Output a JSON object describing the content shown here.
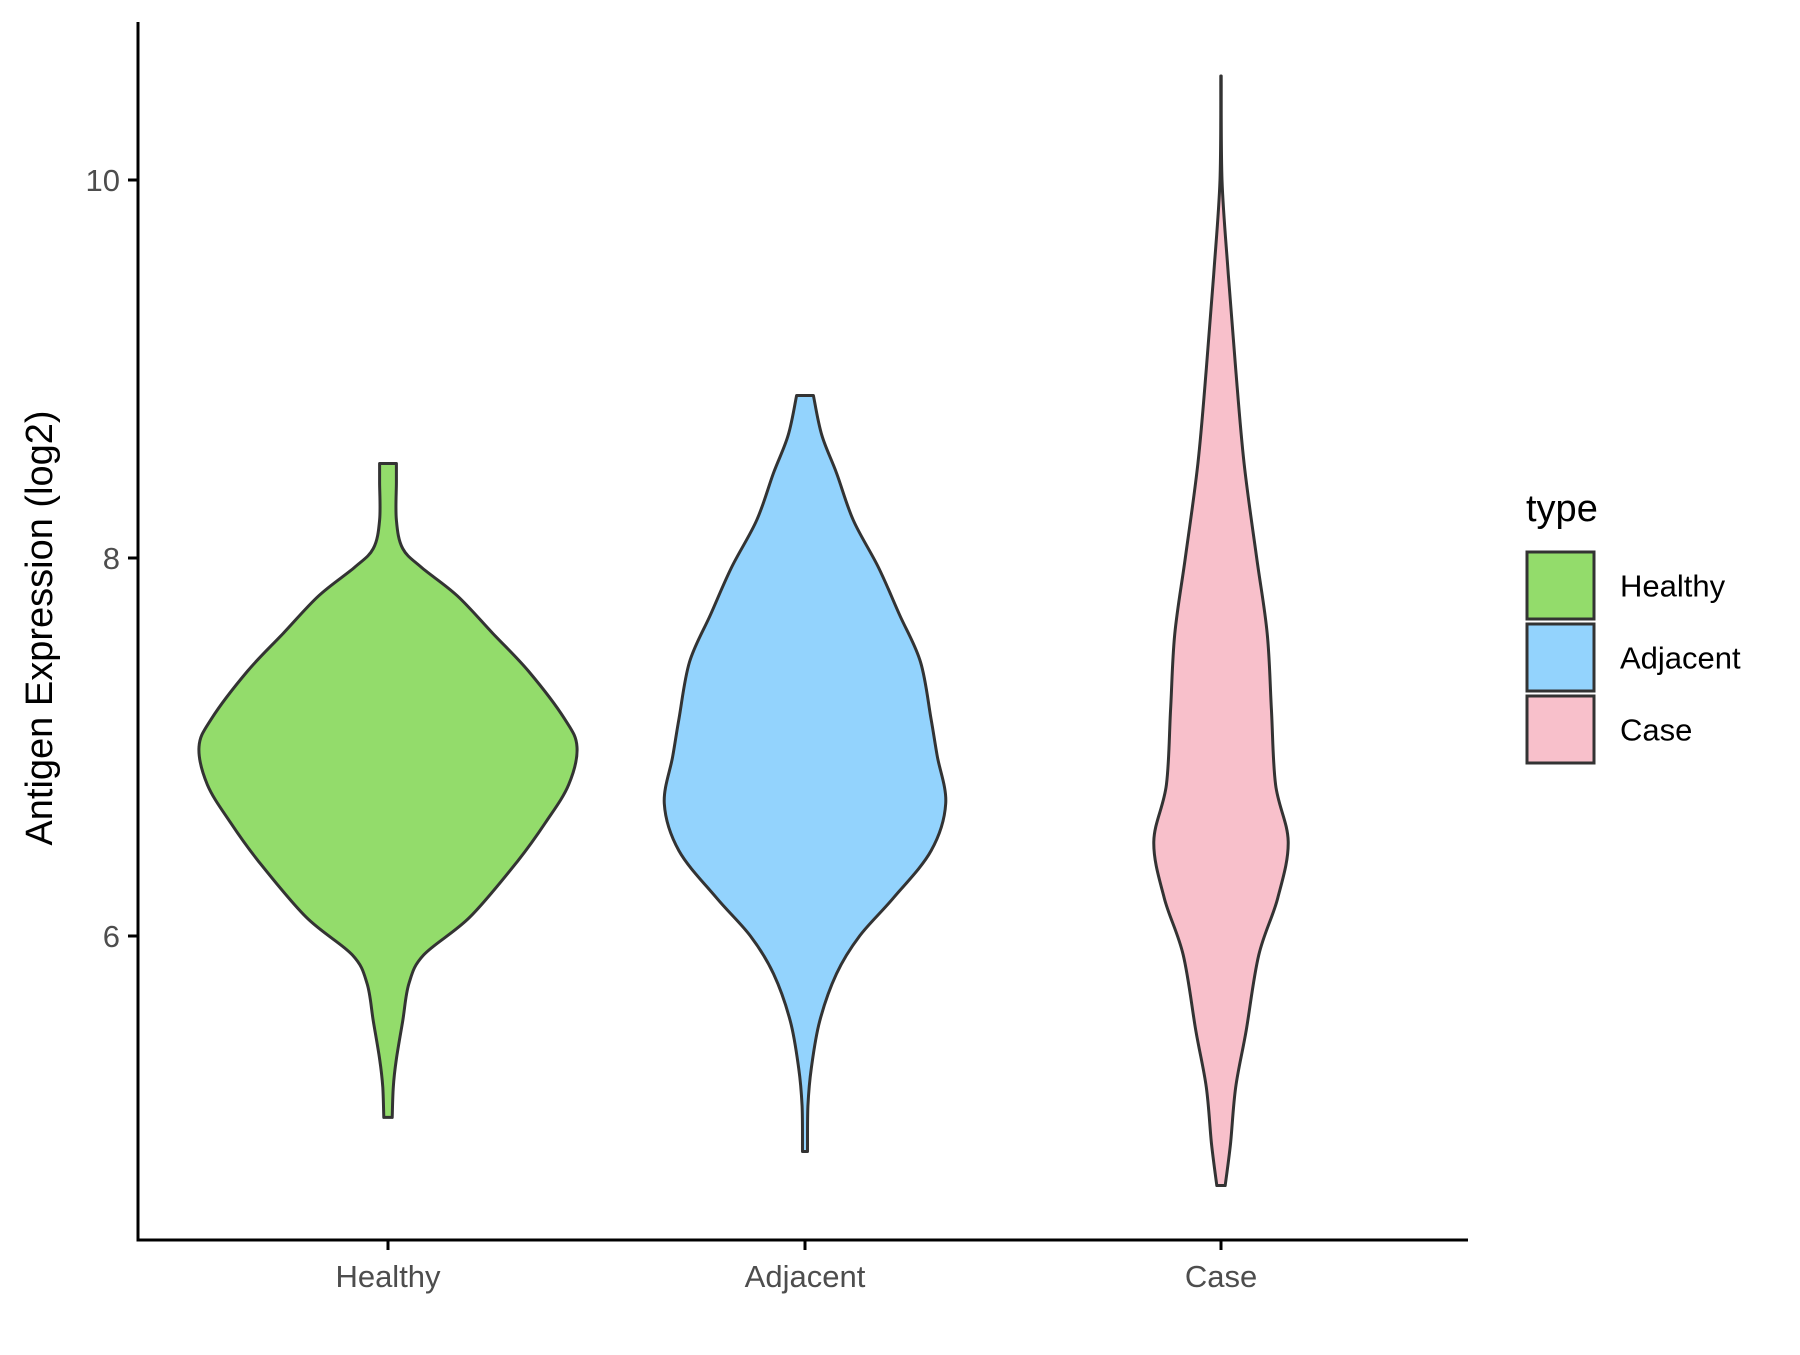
{
  "chart_data": {
    "type": "violin",
    "title": "",
    "xlabel": "",
    "ylabel": "Antigen Expression (log2)",
    "categories": [
      "Healthy",
      "Adjacent",
      "Case"
    ],
    "ylim": [
      4.65,
      11.1
    ],
    "yticks": [
      6,
      8,
      10
    ],
    "grid": false,
    "legend": {
      "title": "type",
      "position": "right",
      "entries": [
        "Healthy",
        "Adjacent",
        "Case"
      ]
    },
    "colors": {
      "Healthy": "#93dc6b",
      "Adjacent": "#93d3fd",
      "Case": "#f8c0cb",
      "outline": "#333333"
    },
    "series": [
      {
        "category": "Healthy",
        "min": 5.04,
        "max": 8.5,
        "profile": [
          [
            5.04,
            0.02
          ],
          [
            5.2,
            0.025
          ],
          [
            5.35,
            0.04
          ],
          [
            5.55,
            0.07
          ],
          [
            5.75,
            0.1
          ],
          [
            5.9,
            0.17
          ],
          [
            6.1,
            0.39
          ],
          [
            6.4,
            0.62
          ],
          [
            6.6,
            0.75
          ],
          [
            6.8,
            0.86
          ],
          [
            7.0,
            0.9
          ],
          [
            7.15,
            0.84
          ],
          [
            7.4,
            0.67
          ],
          [
            7.6,
            0.5
          ],
          [
            7.8,
            0.33
          ],
          [
            7.95,
            0.16
          ],
          [
            8.05,
            0.07
          ],
          [
            8.2,
            0.04
          ],
          [
            8.4,
            0.04
          ],
          [
            8.5,
            0.04
          ]
        ]
      },
      {
        "category": "Adjacent",
        "min": 4.86,
        "max": 8.86,
        "profile": [
          [
            4.86,
            0.012
          ],
          [
            5.1,
            0.014
          ],
          [
            5.3,
            0.03
          ],
          [
            5.55,
            0.07
          ],
          [
            5.8,
            0.15
          ],
          [
            6.0,
            0.26
          ],
          [
            6.2,
            0.42
          ],
          [
            6.45,
            0.6
          ],
          [
            6.7,
            0.67
          ],
          [
            6.95,
            0.63
          ],
          [
            7.15,
            0.6
          ],
          [
            7.45,
            0.55
          ],
          [
            7.7,
            0.45
          ],
          [
            7.95,
            0.35
          ],
          [
            8.2,
            0.23
          ],
          [
            8.45,
            0.15
          ],
          [
            8.65,
            0.08
          ],
          [
            8.86,
            0.04
          ]
        ]
      },
      {
        "category": "Case",
        "min": 4.68,
        "max": 10.55,
        "profile": [
          [
            4.68,
            0.02
          ],
          [
            4.9,
            0.045
          ],
          [
            5.2,
            0.07
          ],
          [
            5.5,
            0.12
          ],
          [
            5.9,
            0.18
          ],
          [
            6.2,
            0.27
          ],
          [
            6.5,
            0.32
          ],
          [
            6.8,
            0.26
          ],
          [
            7.2,
            0.24
          ],
          [
            7.6,
            0.22
          ],
          [
            8.0,
            0.17
          ],
          [
            8.5,
            0.11
          ],
          [
            9.0,
            0.07
          ],
          [
            9.5,
            0.035
          ],
          [
            10.0,
            0.005
          ],
          [
            10.55,
            0.001
          ]
        ]
      }
    ]
  }
}
